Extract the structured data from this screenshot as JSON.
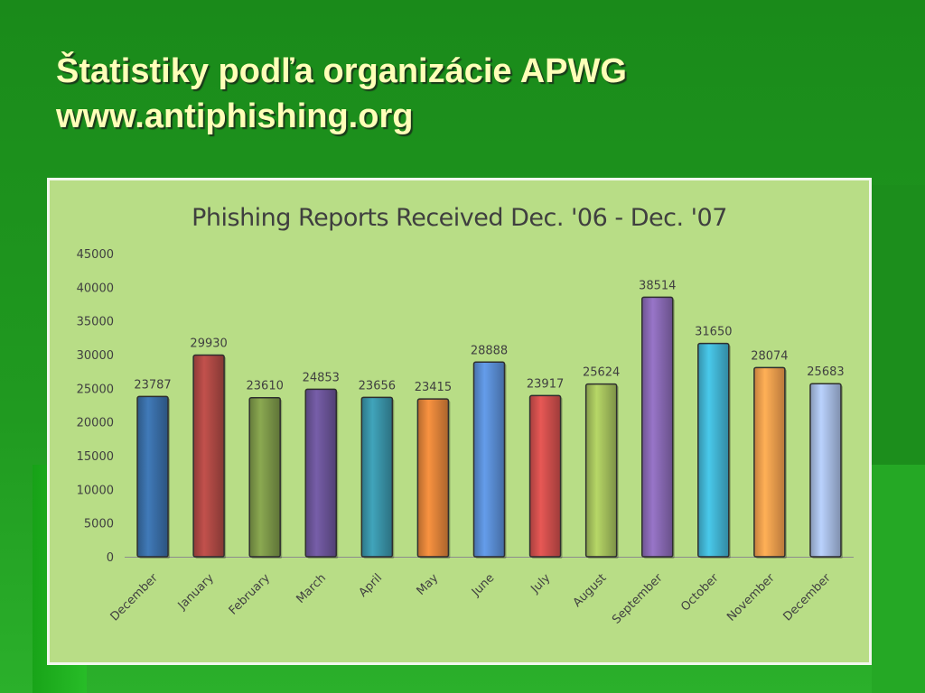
{
  "slide": {
    "title_line1": "Štatistiky podľa organizácie APWG",
    "title_line2": "www.antiphishing.org"
  },
  "chart_data": {
    "type": "bar",
    "title": "Phishing Reports Received Dec. '06 - Dec. '07",
    "xlabel": "",
    "ylabel": "",
    "ylim": [
      0,
      45000
    ],
    "yticks": [
      0,
      5000,
      10000,
      15000,
      20000,
      25000,
      30000,
      35000,
      40000,
      45000
    ],
    "grid": false,
    "legend": "none",
    "categories": [
      "December",
      "January",
      "February",
      "March",
      "April",
      "May",
      "June",
      "July",
      "August",
      "September",
      "October",
      "November",
      "December"
    ],
    "values": [
      23787,
      29930,
      23610,
      24853,
      23656,
      23415,
      28888,
      23917,
      25624,
      38514,
      31650,
      28074,
      25683
    ],
    "colors": [
      "#3a6fa8",
      "#b04a45",
      "#7e9a4a",
      "#6c559a",
      "#3a95aa",
      "#e2853a",
      "#5b8fd6",
      "#d2504d",
      "#a6c35e",
      "#8a6ab6",
      "#42b7d6",
      "#f6a04e",
      "#a9bfe6"
    ]
  }
}
